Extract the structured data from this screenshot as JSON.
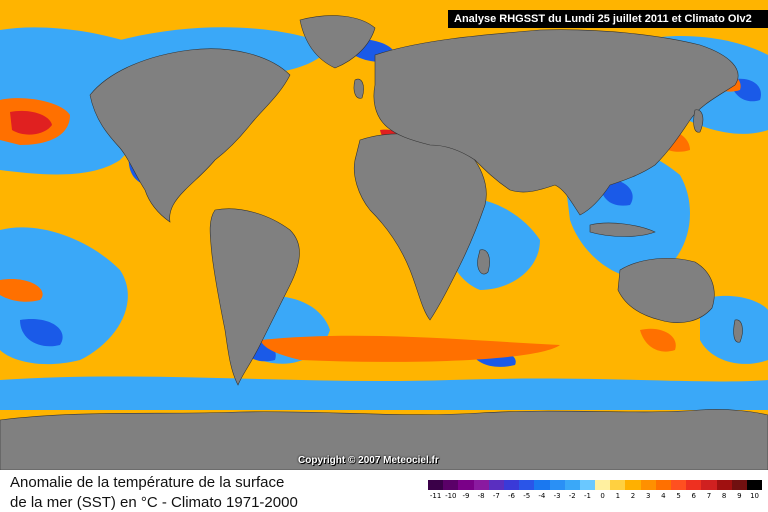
{
  "header": {
    "title": "Analyse RHGSST  du Lundi 25 juillet 2011 et Climato OIv2"
  },
  "copyright": "Copyright © 2007 Meteociel.fr",
  "caption": {
    "line1": "Anomalie de la température de la surface",
    "line2": "de la mer (SST) en °C - Climato 1971-2000"
  },
  "legend": {
    "labels": [
      "-11",
      "-10",
      "-9",
      "-8",
      "-7",
      "-6",
      "-5",
      "-4",
      "-3",
      "-2",
      "-1",
      "0",
      "1",
      "2",
      "3",
      "4",
      "5",
      "6",
      "7",
      "8",
      "9",
      "10"
    ],
    "colors": [
      "#3a0048",
      "#5a0068",
      "#7a0088",
      "#8a1aa0",
      "#5a2fc0",
      "#3a3ad8",
      "#2a55e8",
      "#1a78f0",
      "#2a90f5",
      "#3aa8f8",
      "#6ac8ff",
      "#fff0a0",
      "#ffd040",
      "#ffb000",
      "#ff9000",
      "#ff7000",
      "#ff5020",
      "#ee3020",
      "#d02020",
      "#a01010",
      "#701010",
      "#000000"
    ]
  },
  "map": {
    "ocean_color": "#ffb400",
    "land_color": "#808080",
    "anomaly_colors": {
      "warm": "#ff5020",
      "hot": "#e02020",
      "cool": "#2a90f5",
      "cold": "#1a4ae0",
      "mild": "#6ac8ff"
    }
  }
}
